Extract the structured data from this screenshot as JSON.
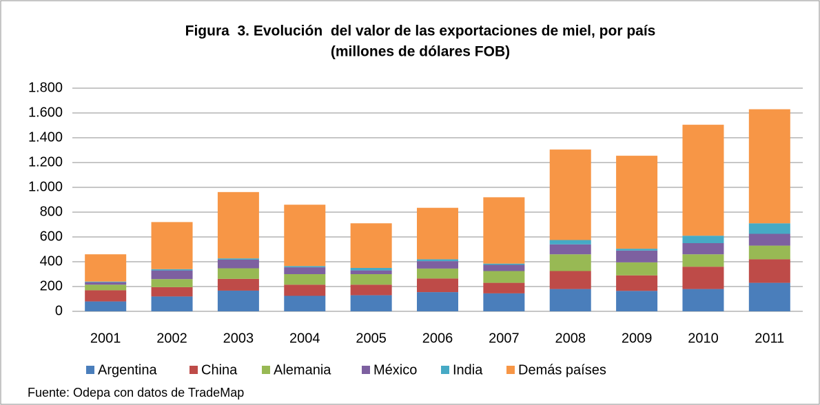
{
  "chart_data": {
    "type": "stacked_bar",
    "title": "Figura  3. Evolución  del valor de las exportaciones de miel, por país",
    "subtitle": "(millones de dólares FOB)",
    "source": "Fuente: Odepa con datos de TradeMap",
    "categories": [
      "2001",
      "2002",
      "2003",
      "2004",
      "2005",
      "2006",
      "2007",
      "2008",
      "2009",
      "2010",
      "2011"
    ],
    "series": [
      {
        "name": "Argentina",
        "color": "#4a7ebb",
        "values": [
          80,
          120,
          167,
          125,
          130,
          155,
          145,
          180,
          165,
          180,
          230
        ]
      },
      {
        "name": "China",
        "color": "#be4b48",
        "values": [
          90,
          75,
          95,
          90,
          85,
          110,
          85,
          145,
          125,
          180,
          190
        ]
      },
      {
        "name": "Alemania",
        "color": "#98b954",
        "values": [
          45,
          65,
          85,
          85,
          85,
          80,
          95,
          135,
          105,
          100,
          110
        ]
      },
      {
        "name": "México",
        "color": "#7d60a0",
        "values": [
          20,
          70,
          70,
          55,
          30,
          60,
          50,
          80,
          95,
          90,
          95
        ]
      },
      {
        "name": "India",
        "color": "#46aac5",
        "values": [
          5,
          10,
          10,
          10,
          20,
          15,
          10,
          35,
          15,
          60,
          85
        ]
      },
      {
        "name": "Demás países",
        "color": "#f79646",
        "values": [
          220,
          380,
          535,
          495,
          360,
          415,
          535,
          730,
          750,
          895,
          920
        ]
      }
    ],
    "ylim": [
      0,
      1800
    ],
    "yticks": [
      0,
      200,
      400,
      600,
      800,
      {
        "value": 1000,
        "label": "1.000"
      },
      {
        "value": 1200,
        "label": "1.200"
      },
      {
        "value": 1400,
        "label": "1.400"
      },
      {
        "value": 1600,
        "label": "1.600"
      },
      {
        "value": 1800,
        "label": "1.800"
      }
    ],
    "grid": true,
    "legend": "bottom"
  }
}
